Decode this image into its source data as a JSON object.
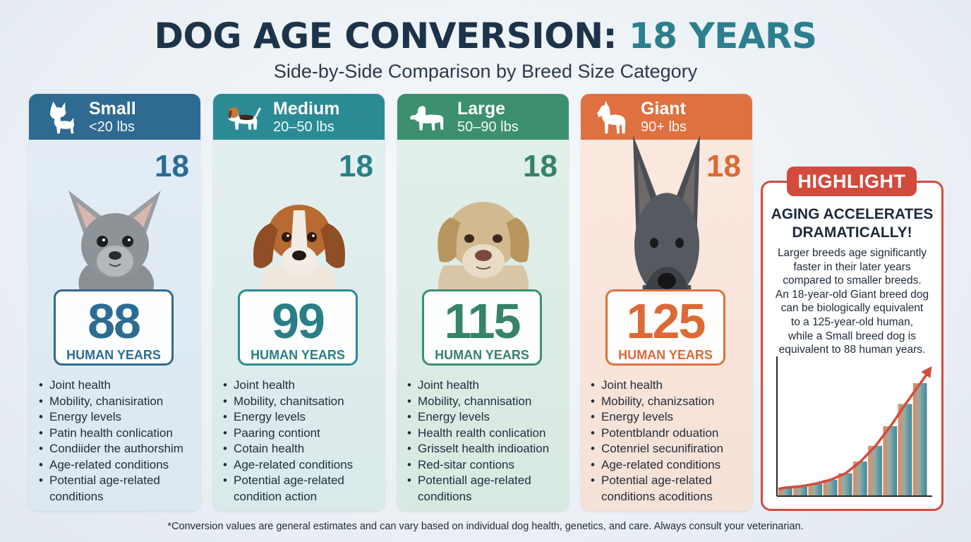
{
  "header": {
    "title_main": "DOG AGE CONVERSION:",
    "title_accent": "18 YEARS",
    "subtitle": "Side-by-Side Comparison by Breed Size Category"
  },
  "cards": [
    {
      "name": "Small",
      "weight": "<20 lbs",
      "dog_age": "18",
      "human_age": "88",
      "human_label": "HUMAN YEARS",
      "bullets": [
        "Joint health",
        "Mobility, chanisiration",
        "Energy levels",
        "Patin health conlication",
        "Condiider the authorshim",
        "Age-related conditions",
        "Potential age-related conditions"
      ]
    },
    {
      "name": "Medium",
      "weight": "20–50 lbs",
      "dog_age": "18",
      "human_age": "99",
      "human_label": "HUMAN YEARS",
      "bullets": [
        "Joint health",
        "Mobility, chanitsation",
        "Energy levels",
        "Paaring contiont",
        "Cotain health",
        "Age-related conditions",
        "Potential age-related condition action"
      ]
    },
    {
      "name": "Large",
      "weight": "50–90 lbs",
      "dog_age": "18",
      "human_age": "115",
      "human_label": "HUMAN YEARS",
      "bullets": [
        "Joint health",
        "Mobility, channisation",
        "Energy levels",
        "Health realth conlication",
        "Grisselt health indioation",
        "Red-sitar contions",
        "Potentiall age-related conditions"
      ]
    },
    {
      "name": "Giant",
      "weight": "90+ lbs",
      "dog_age": "18",
      "human_age": "125",
      "human_label": "HUMAN YEARS",
      "bullets": [
        "Joint health",
        "Mobility, chanizsation",
        "Energy levels",
        "Potentblandr oduation",
        "Cotenriel secunifiration",
        "Age-related conditions",
        "Potential age-related conditions acoditions"
      ]
    }
  ],
  "highlight": {
    "badge": "HIGHLIGHT",
    "heading_line1": "AGING ACCELERATES",
    "heading_line2": "DRAMATICALLY!",
    "body_lines": [
      "Larger breeds age significantly",
      "faster in their later years",
      "compared to smaller breeds.",
      "An 18-year-old Giant breed dog",
      "can be biologically equivalent",
      "to a 125-year-old human,",
      "while a Small breed dog is",
      "equivalent to 88 human years."
    ],
    "chart_levels": [
      0.06,
      0.07,
      0.09,
      0.12,
      0.17,
      0.26,
      0.38,
      0.53,
      0.7,
      0.86
    ]
  },
  "icons": {
    "small": "chihuahua-silhouette-icon",
    "medium": "beagle-icon",
    "large": "labrador-silhouette-icon",
    "giant": "great-dane-silhouette-icon",
    "chart_arrow": "trend-arrow-icon"
  },
  "colors": {
    "small": "#2f6a92",
    "medium": "#2b8b94",
    "large": "#3c8f6f",
    "giant": "#df7040",
    "highlight": "#d34b3d",
    "title": "#1d3349",
    "title_accent": "#2b7f8e"
  },
  "footnote": "*Conversion values are general estimates and can vary based on individual dog health, genetics, and care. Always consult your veterinarian."
}
